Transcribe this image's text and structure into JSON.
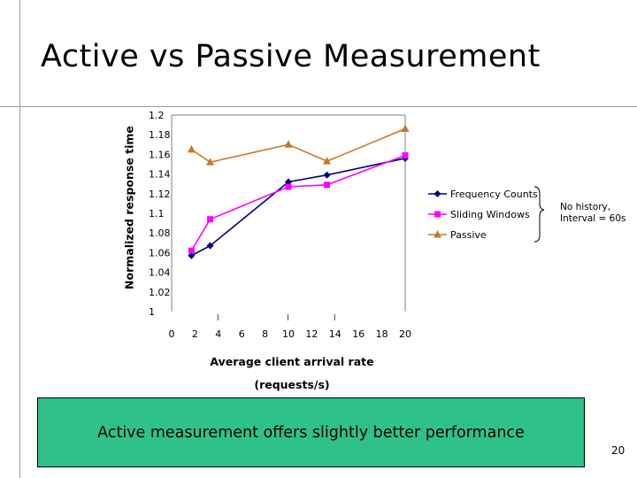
{
  "slide": {
    "title": "Active vs Passive Measurement",
    "annotation_line1": "No history,",
    "annotation_line2": "Interval = 60s",
    "callout": "Active measurement offers slightly better performance",
    "page_number": "20"
  },
  "chart_data": {
    "type": "line",
    "title": "",
    "xlabel_line1": "Average client arrival rate",
    "xlabel_line2": "(requests/s)",
    "ylabel": "Normalized response time",
    "xlim": [
      0,
      20
    ],
    "ylim": [
      1,
      1.2
    ],
    "x_ticks": [
      "0",
      "2",
      "4",
      "6",
      "8",
      "10",
      "12",
      "14",
      "16",
      "18",
      "20"
    ],
    "y_ticks": [
      "1",
      "1.02",
      "1.04",
      "1.06",
      "1.08",
      "1.1",
      "1.12",
      "1.14",
      "1.16",
      "1.18",
      "1.2"
    ],
    "grid": false,
    "legend_position": "right",
    "series": [
      {
        "name": "Frequency Counts",
        "marker": "diamond",
        "color": "#00007a",
        "points": [
          [
            1.7,
            1.057
          ],
          [
            3.3,
            1.067
          ],
          [
            10.0,
            1.132
          ],
          [
            13.3,
            1.139
          ],
          [
            20.0,
            1.156
          ]
        ]
      },
      {
        "name": "Sliding Windows",
        "marker": "square",
        "color": "#ff00ff",
        "points": [
          [
            1.7,
            1.062
          ],
          [
            3.3,
            1.094
          ],
          [
            10.0,
            1.127
          ],
          [
            13.3,
            1.129
          ],
          [
            20.0,
            1.159
          ]
        ]
      },
      {
        "name": "Passive",
        "marker": "triangle",
        "color": "#c87a28",
        "points": [
          [
            1.7,
            1.165
          ],
          [
            3.3,
            1.152
          ],
          [
            10.0,
            1.17
          ],
          [
            13.3,
            1.153
          ],
          [
            20.0,
            1.186
          ]
        ]
      }
    ]
  }
}
